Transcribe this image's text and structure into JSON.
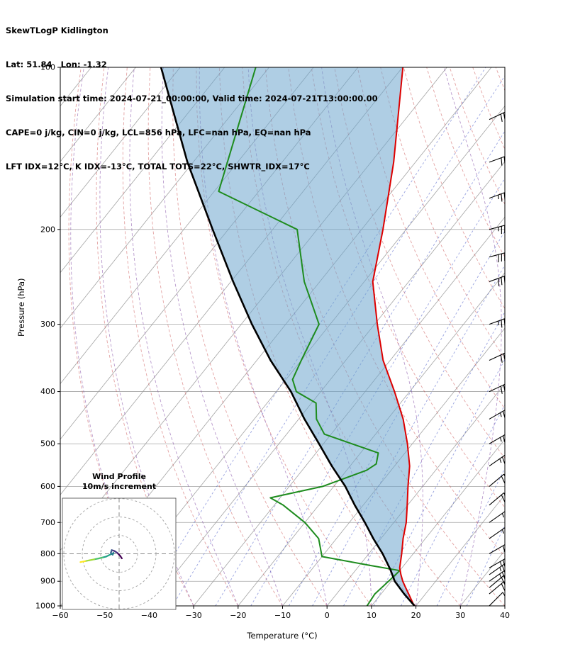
{
  "header": {
    "title": "SkewTLogP Kidlington",
    "location": "Lat: 51.84   Lon: -1.32",
    "times": "Simulation start time: 2024-07-21_00:00:00, Valid time: 2024-07-21T13:00:00.00",
    "indices1": "CAPE=0 j/kg, CIN=0 j/kg, LCL=856 hPa, LFC=nan hPa, EQ=nan hPa",
    "indices2": "LFT IDX=12°C, K IDX=-13°C, TOTAL TOTS=22°C, SHWTR_IDX=17°C"
  },
  "chart_data": {
    "type": "skewt-logp",
    "station": "Kidlington",
    "lat": 51.84,
    "lon": -1.32,
    "xlabel": "Temperature (°C)",
    "ylabel": "Pressure (hPa)",
    "xlim": [
      -60,
      40
    ],
    "x_ticks": [
      -60,
      -50,
      -40,
      -30,
      -20,
      -10,
      0,
      10,
      20,
      30,
      40
    ],
    "pressure_lim": [
      100,
      1000
    ],
    "pressure_ticks": [
      100,
      200,
      300,
      400,
      500,
      600,
      700,
      800,
      900,
      1000
    ],
    "skew_slope": 0.8,
    "indices": {
      "CAPE_j_kg": 0,
      "CIN_j_kg": 0,
      "LCL_hPa": 856,
      "LFC_hPa": "nan",
      "EQ_hPa": "nan",
      "LFT_IDX_C": 12,
      "K_IDX_C": -13,
      "TOTAL_TOTS_C": 22,
      "SHWTR_IDX_C": 17
    },
    "colors": {
      "temperature": "#dd0000",
      "dewpoint": "#1e8c1e",
      "parcel": "#000000",
      "cin_shade": "#6ea6cd",
      "isotherm": "#999999",
      "grid": "#999999",
      "dry_adiabat": "#cc5555",
      "moist_adiabat": "#8855aa",
      "mixing_ratio": "#5566cc",
      "barb": "#000000"
    },
    "temperature_C": {
      "pressure_hPa": [
        1000,
        950,
        925,
        900,
        875,
        850,
        800,
        750,
        700,
        650,
        600,
        550,
        500,
        450,
        400,
        350,
        300,
        250,
        200,
        150,
        100
      ],
      "values": [
        19.6,
        16.2,
        14.4,
        12.6,
        11.0,
        9.5,
        7.4,
        5.0,
        2.8,
        -0.1,
        -3.3,
        -6.6,
        -11.1,
        -16.5,
        -23.4,
        -31.6,
        -39.4,
        -48.1,
        -55.2,
        -64.9,
        -79.9
      ]
    },
    "dewpoint_C": {
      "pressure_hPa": [
        1000,
        950,
        900,
        875,
        860,
        840,
        810,
        750,
        700,
        650,
        630,
        600,
        560,
        545,
        520,
        480,
        450,
        420,
        400,
        380,
        350,
        300,
        250,
        200,
        170,
        100
      ],
      "values": [
        9.0,
        8.6,
        9.4,
        9.8,
        10.0,
        2.0,
        -10.0,
        -14.0,
        -20.0,
        -28.0,
        -32.2,
        -22.5,
        -15.5,
        -14.5,
        -16.0,
        -31.5,
        -36.0,
        -39.0,
        -45.5,
        -48.5,
        -50.0,
        -52.5,
        -63.5,
        -74.5,
        -99.0,
        -113.0
      ]
    },
    "parcel_C": {
      "pressure_hPa": [
        1000,
        950,
        900,
        856,
        800,
        750,
        700,
        650,
        600,
        550,
        500,
        450,
        400,
        350,
        300,
        250,
        200,
        150,
        100
      ],
      "values": [
        19.7,
        15.2,
        10.8,
        7.7,
        3.1,
        -1.7,
        -6.5,
        -11.9,
        -17.4,
        -24.1,
        -31.0,
        -38.7,
        -46.7,
        -56.9,
        -67.6,
        -79.5,
        -93.5,
        -111.3,
        -134.3
      ]
    },
    "background_lines": {
      "isotherms_C": [
        -160,
        -150,
        -140,
        -130,
        -120,
        -110,
        -100,
        -90,
        -80,
        -70,
        -60,
        -50,
        -40,
        -30,
        -20,
        -10,
        0,
        10,
        20,
        30,
        40
      ],
      "dry_adiabats_theta_C": [
        -40,
        -30,
        -20,
        -10,
        0,
        10,
        20,
        30,
        40,
        50,
        60,
        70,
        80,
        90,
        100,
        110,
        120,
        130,
        140,
        150
      ],
      "moist_adiabats_start_C": [
        -40,
        -30,
        -20,
        -10,
        0,
        10,
        20,
        30
      ],
      "mixing_ratio_g_kg": [
        0.1,
        0.2,
        0.5,
        1,
        2,
        3,
        5,
        8,
        12,
        20,
        30
      ]
    },
    "wind_barbs": {
      "pressure_hPa": [
        1000,
        950,
        925,
        900,
        875,
        850,
        800,
        750,
        700,
        650,
        600,
        550,
        500,
        450,
        400,
        350,
        300,
        250,
        225,
        200,
        175,
        150,
        125,
        100
      ],
      "direction_deg": [
        45,
        50,
        50,
        55,
        55,
        60,
        60,
        55,
        55,
        50,
        50,
        55,
        60,
        60,
        65,
        65,
        70,
        70,
        75,
        75,
        70,
        70,
        65,
        60
      ],
      "speed_kt": [
        10,
        20,
        20,
        25,
        25,
        25,
        20,
        15,
        15,
        20,
        20,
        25,
        25,
        25,
        30,
        30,
        35,
        40,
        40,
        35,
        35,
        30,
        30,
        25
      ]
    },
    "hodograph": {
      "title": "Wind Profile",
      "subtitle": "10m/s increment",
      "ring_interval_ms": 10,
      "rings_ms": [
        10,
        20,
        30
      ],
      "u_ms": [
        1.5,
        0.5,
        -1.0,
        -2.5,
        -4.0,
        -4.5,
        -3.5,
        -3.0,
        -5.0,
        -7.0,
        -9.0,
        -11.0,
        -13.5,
        -16.0,
        -18.5,
        -21.0
      ],
      "v_ms": [
        -2.5,
        -1.0,
        0.5,
        1.5,
        2.0,
        0.5,
        -0.5,
        0.5,
        -0.5,
        -1.5,
        -2.0,
        -2.5,
        -3.0,
        -3.5,
        -4.0,
        -4.5
      ],
      "colormap": [
        "#440154",
        "#46327e",
        "#375c8d",
        "#27808e",
        "#1fa187",
        "#4ac16d",
        "#a0da39",
        "#fde725"
      ]
    }
  }
}
